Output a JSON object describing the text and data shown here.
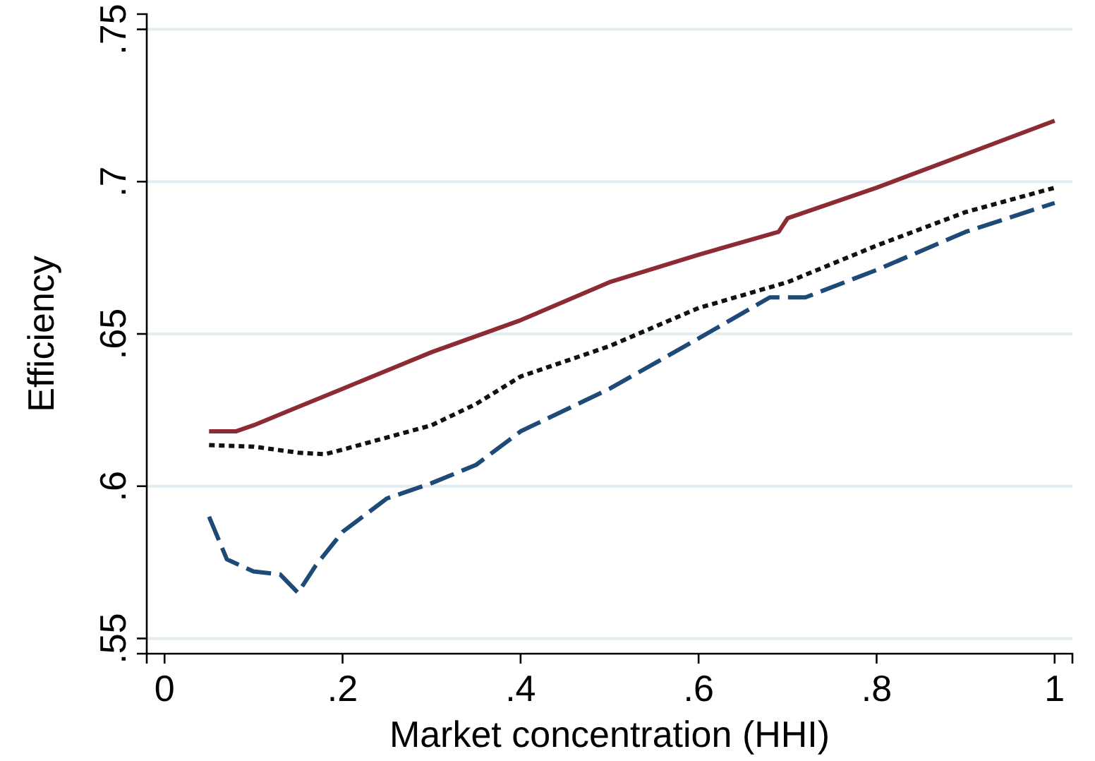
{
  "chart_data": {
    "type": "line",
    "xlabel": "Market concentration (HHI)",
    "ylabel": "Efficiency",
    "xlim": [
      -0.02,
      1.02
    ],
    "xticks": [
      {
        "value": 0,
        "label": "0"
      },
      {
        "value": 0.2,
        "label": ".2"
      },
      {
        "value": 0.4,
        "label": ".4"
      },
      {
        "value": 0.6,
        "label": ".6"
      },
      {
        "value": 0.8,
        "label": ".8"
      },
      {
        "value": 1,
        "label": "1"
      }
    ],
    "ylim": [
      0.545,
      0.755
    ],
    "yticks": [
      {
        "value": 0.55,
        "label": ".55"
      },
      {
        "value": 0.6,
        "label": ".6"
      },
      {
        "value": 0.65,
        "label": ".65"
      },
      {
        "value": 0.7,
        "label": ".7"
      },
      {
        "value": 0.75,
        "label": ".75"
      }
    ],
    "grid": "y",
    "series": [
      {
        "color": "#8c2b33",
        "line_style": "solid",
        "x": [
          0.05,
          0.08,
          0.1,
          0.15,
          0.2,
          0.3,
          0.4,
          0.5,
          0.6,
          0.69,
          0.7,
          0.8,
          0.9,
          1.0
        ],
        "values": [
          0.618,
          0.618,
          0.62,
          0.626,
          0.632,
          0.644,
          0.6545,
          0.667,
          0.676,
          0.6835,
          0.688,
          0.698,
          0.709,
          0.72
        ]
      },
      {
        "color": "#111111",
        "line_style": "dotted",
        "x": [
          0.05,
          0.1,
          0.15,
          0.18,
          0.2,
          0.3,
          0.35,
          0.4,
          0.5,
          0.6,
          0.7,
          0.8,
          0.9,
          1.0
        ],
        "values": [
          0.6135,
          0.613,
          0.611,
          0.6105,
          0.612,
          0.62,
          0.627,
          0.636,
          0.646,
          0.6585,
          0.667,
          0.679,
          0.69,
          0.698
        ]
      },
      {
        "color": "#1e4a78",
        "line_style": "dashed",
        "x": [
          0.05,
          0.07,
          0.1,
          0.13,
          0.15,
          0.17,
          0.2,
          0.25,
          0.3,
          0.35,
          0.4,
          0.5,
          0.6,
          0.68,
          0.72,
          0.8,
          0.9,
          1.0
        ],
        "values": [
          0.59,
          0.576,
          0.572,
          0.571,
          0.565,
          0.574,
          0.585,
          0.596,
          0.601,
          0.607,
          0.618,
          0.632,
          0.6485,
          0.662,
          0.662,
          0.671,
          0.6835,
          0.693
        ]
      }
    ]
  }
}
